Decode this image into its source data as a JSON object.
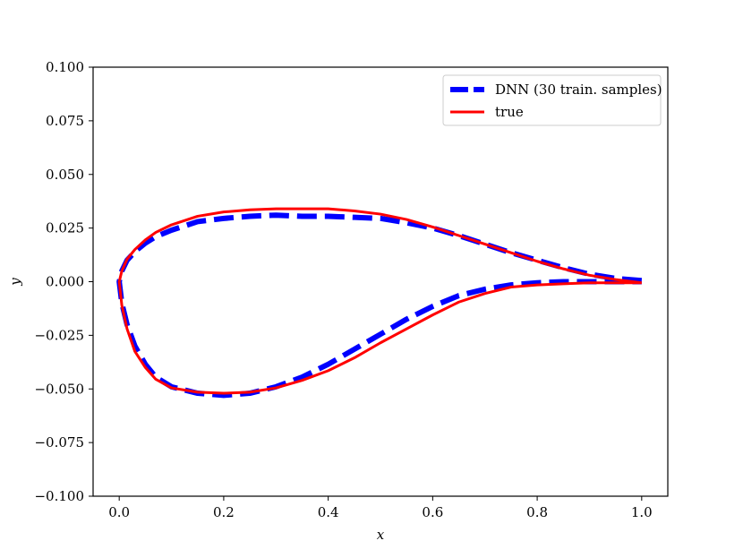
{
  "chart_data": {
    "type": "line",
    "title": "",
    "xlabel": "x",
    "ylabel": "y",
    "xlim": [
      -0.05,
      1.05
    ],
    "ylim": [
      -0.1,
      0.1
    ],
    "xticks": [
      0.0,
      0.2,
      0.4,
      0.6,
      0.8,
      1.0
    ],
    "xtick_labels": [
      "0.0",
      "0.2",
      "0.4",
      "0.6",
      "0.8",
      "1.0"
    ],
    "yticks": [
      0.1,
      0.075,
      0.05,
      0.025,
      0.0,
      -0.025,
      -0.05,
      -0.075,
      -0.1
    ],
    "ytick_labels": [
      "0.100",
      "0.075",
      "0.050",
      "0.025",
      "0.000",
      "−0.025",
      "−0.050",
      "−0.075",
      "−0.100"
    ],
    "grid": false,
    "legend_position": "top-right",
    "series": [
      {
        "name": "DNN (30 train. samples)",
        "color": "#0000ff",
        "style": "dashed",
        "x": [
          1.0,
          0.95,
          0.9,
          0.85,
          0.8,
          0.75,
          0.7,
          0.65,
          0.6,
          0.55,
          0.5,
          0.45,
          0.4,
          0.35,
          0.3,
          0.25,
          0.2,
          0.15,
          0.1,
          0.07,
          0.05,
          0.03,
          0.015,
          0.005,
          0.0,
          0.005,
          0.015,
          0.03,
          0.05,
          0.07,
          0.1,
          0.15,
          0.2,
          0.25,
          0.3,
          0.35,
          0.4,
          0.45,
          0.5,
          0.55,
          0.6,
          0.65,
          0.7,
          0.75,
          0.8,
          0.85,
          0.9,
          0.95,
          1.0
        ],
        "y": [
          0.0005,
          0.0015,
          0.0035,
          0.0065,
          0.01,
          0.0135,
          0.0175,
          0.0215,
          0.025,
          0.0275,
          0.0295,
          0.03,
          0.0305,
          0.0305,
          0.031,
          0.0305,
          0.0295,
          0.028,
          0.024,
          0.021,
          0.018,
          0.014,
          0.01,
          0.005,
          0.0,
          -0.01,
          -0.02,
          -0.03,
          -0.0385,
          -0.0445,
          -0.049,
          -0.052,
          -0.053,
          -0.052,
          -0.049,
          -0.0445,
          -0.0385,
          -0.0315,
          -0.0245,
          -0.0175,
          -0.0115,
          -0.0065,
          -0.0035,
          -0.0015,
          -0.0005,
          0.0,
          0.0,
          0.0,
          0.0
        ]
      },
      {
        "name": "true",
        "color": "#ff0000",
        "style": "solid",
        "x": [
          1.0,
          0.95,
          0.9,
          0.85,
          0.8,
          0.75,
          0.7,
          0.65,
          0.6,
          0.55,
          0.5,
          0.45,
          0.4,
          0.35,
          0.3,
          0.25,
          0.2,
          0.15,
          0.1,
          0.07,
          0.05,
          0.03,
          0.015,
          0.005,
          0.0,
          0.005,
          0.015,
          0.03,
          0.05,
          0.07,
          0.1,
          0.15,
          0.2,
          0.25,
          0.3,
          0.35,
          0.4,
          0.45,
          0.5,
          0.55,
          0.6,
          0.65,
          0.7,
          0.75,
          0.8,
          0.85,
          0.9,
          0.95,
          1.0
        ],
        "y": [
          -0.0005,
          0.001,
          0.003,
          0.006,
          0.0095,
          0.0135,
          0.0175,
          0.0215,
          0.0255,
          0.029,
          0.0315,
          0.033,
          0.034,
          0.034,
          0.034,
          0.0335,
          0.0325,
          0.0305,
          0.0265,
          0.023,
          0.0195,
          0.015,
          0.0105,
          0.005,
          0.0,
          -0.011,
          -0.022,
          -0.0325,
          -0.04,
          -0.0455,
          -0.0495,
          -0.0515,
          -0.052,
          -0.0515,
          -0.0495,
          -0.046,
          -0.0415,
          -0.0355,
          -0.0285,
          -0.022,
          -0.0155,
          -0.0095,
          -0.0055,
          -0.0025,
          -0.0015,
          -0.001,
          -0.0005,
          -0.0005,
          -0.0005
        ]
      }
    ]
  }
}
